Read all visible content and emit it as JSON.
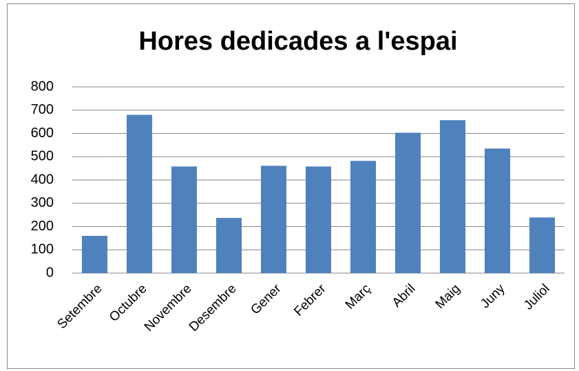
{
  "chart_data": {
    "type": "bar",
    "title": "Hores dedicades a l'espai",
    "categories": [
      "Setembre",
      "Octubre",
      "Novembre",
      "Desembre",
      "Gener",
      "Febrer",
      "Març",
      "Abril",
      "Maig",
      "Juny",
      "Juliol"
    ],
    "values": [
      160,
      680,
      458,
      237,
      461,
      458,
      482,
      603,
      657,
      535,
      239
    ],
    "color": "#4f81bd",
    "ylim": [
      0,
      800
    ],
    "yticks": [
      0,
      100,
      200,
      300,
      400,
      500,
      600,
      700,
      800
    ],
    "grid": true
  }
}
